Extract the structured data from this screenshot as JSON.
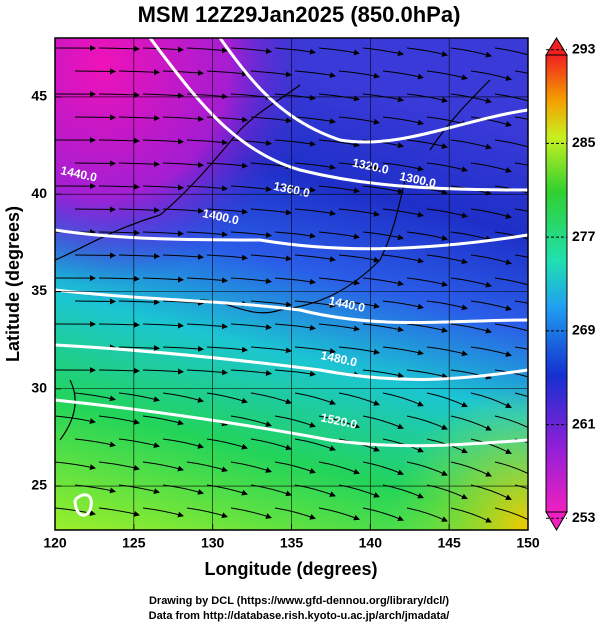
{
  "title": "MSM 12Z29Jan2025 (850.0hPa)",
  "x_axis": {
    "label": "Longitude (degrees)",
    "ticks": [
      120,
      125,
      130,
      135,
      140,
      145,
      150
    ],
    "range": [
      120,
      150
    ]
  },
  "y_axis": {
    "label": "Latitude  (degrees)",
    "ticks": [
      25,
      30,
      35,
      40,
      45
    ],
    "range": [
      22.74,
      48.03
    ]
  },
  "colorbar": {
    "ticks": [
      253,
      261,
      269,
      277,
      285,
      293
    ],
    "range": [
      252,
      294
    ]
  },
  "contour_labels": [
    {
      "text": "1440.0",
      "lon": 121.5,
      "lat": 41.0
    },
    {
      "text": "1400.0",
      "lon": 130.5,
      "lat": 38.8
    },
    {
      "text": "1360.0",
      "lon": 135.0,
      "lat": 40.2
    },
    {
      "text": "1320.0",
      "lon": 140.0,
      "lat": 41.4
    },
    {
      "text": "1300.0",
      "lon": 143.0,
      "lat": 40.7
    },
    {
      "text": "1440.0",
      "lon": 138.5,
      "lat": 34.3
    },
    {
      "text": "1480.0",
      "lon": 138.0,
      "lat": 31.5
    },
    {
      "text": "1520.0",
      "lon": 138.0,
      "lat": 28.3
    }
  ],
  "credits": [
    "Drawing by DCL (https://www.gfd-dennou.org/library/dcl/)",
    "Data from http://database.rish.kyoto-u.ac.jp/arch/jmadata/"
  ]
}
